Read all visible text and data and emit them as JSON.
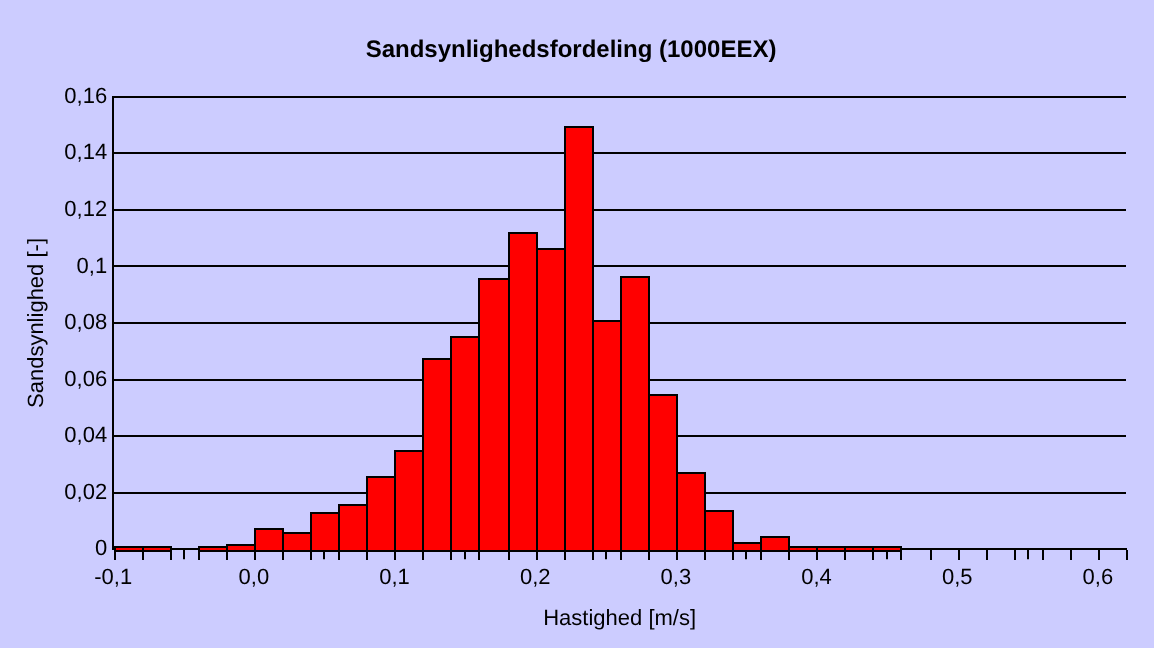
{
  "chart_data": {
    "type": "histogram",
    "title": "Sandsynlighedsfordeling (1000EEX)",
    "xlabel": "Hastighed [m/s]",
    "ylabel": "Sandsynlighed [-]",
    "color": "#ff0000",
    "bins": [
      -0.1,
      -0.08,
      -0.06,
      -0.04,
      -0.02,
      0,
      0.02,
      0.04,
      0.06,
      0.08,
      0.1,
      0.12,
      0.14,
      0.16,
      0.18,
      0.2,
      0.22,
      0.24,
      0.26,
      0.28,
      0.3,
      0.32,
      0.34,
      0.36,
      0.38,
      0.4,
      0.42,
      0.44,
      0.46,
      0.48,
      0.5,
      0.52,
      0.54,
      0.56,
      0.58,
      0.6,
      0.62
    ],
    "values": [
      0.001,
      0.001,
      0,
      0.001,
      0.002,
      0.0075,
      0.006,
      0.013,
      0.016,
      0.026,
      0.035,
      0.0675,
      0.0755,
      0.096,
      0.1125,
      0.1067,
      0.15,
      0.081,
      0.0967,
      0.055,
      0.0275,
      0.014,
      0.0025,
      0.0047,
      0.001,
      0.001,
      0.001,
      0.001,
      0,
      0,
      0,
      0,
      0,
      0,
      0,
      0
    ],
    "xlim": [
      -0.1,
      0.62
    ],
    "xticks": [
      {
        "value": -0.1,
        "label": "-0,1"
      },
      {
        "value": 0,
        "label": "0,0"
      },
      {
        "value": 0.1,
        "label": "0,1"
      },
      {
        "value": 0.2,
        "label": "0,2"
      },
      {
        "value": 0.3,
        "label": "0,3"
      },
      {
        "value": 0.4,
        "label": "0,4"
      },
      {
        "value": 0.5,
        "label": "0,5"
      },
      {
        "value": 0.6,
        "label": "0,6"
      }
    ],
    "ylim": [
      0,
      0.16
    ],
    "yticks": [
      0,
      {
        "value": 0.02,
        "label": "0,02"
      },
      {
        "value": 0.04,
        "label": "0,04"
      },
      {
        "value": 0.06,
        "label": "0,06"
      },
      {
        "value": 0.08,
        "label": "0,08"
      },
      {
        "value": 0.1,
        "label": "0,1"
      },
      {
        "value": 0.12,
        "label": "0,12"
      },
      {
        "value": 0.14,
        "label": "0,14"
      },
      {
        "value": 0.16,
        "label": "0,16"
      }
    ],
    "grid": "y",
    "legend": false
  }
}
